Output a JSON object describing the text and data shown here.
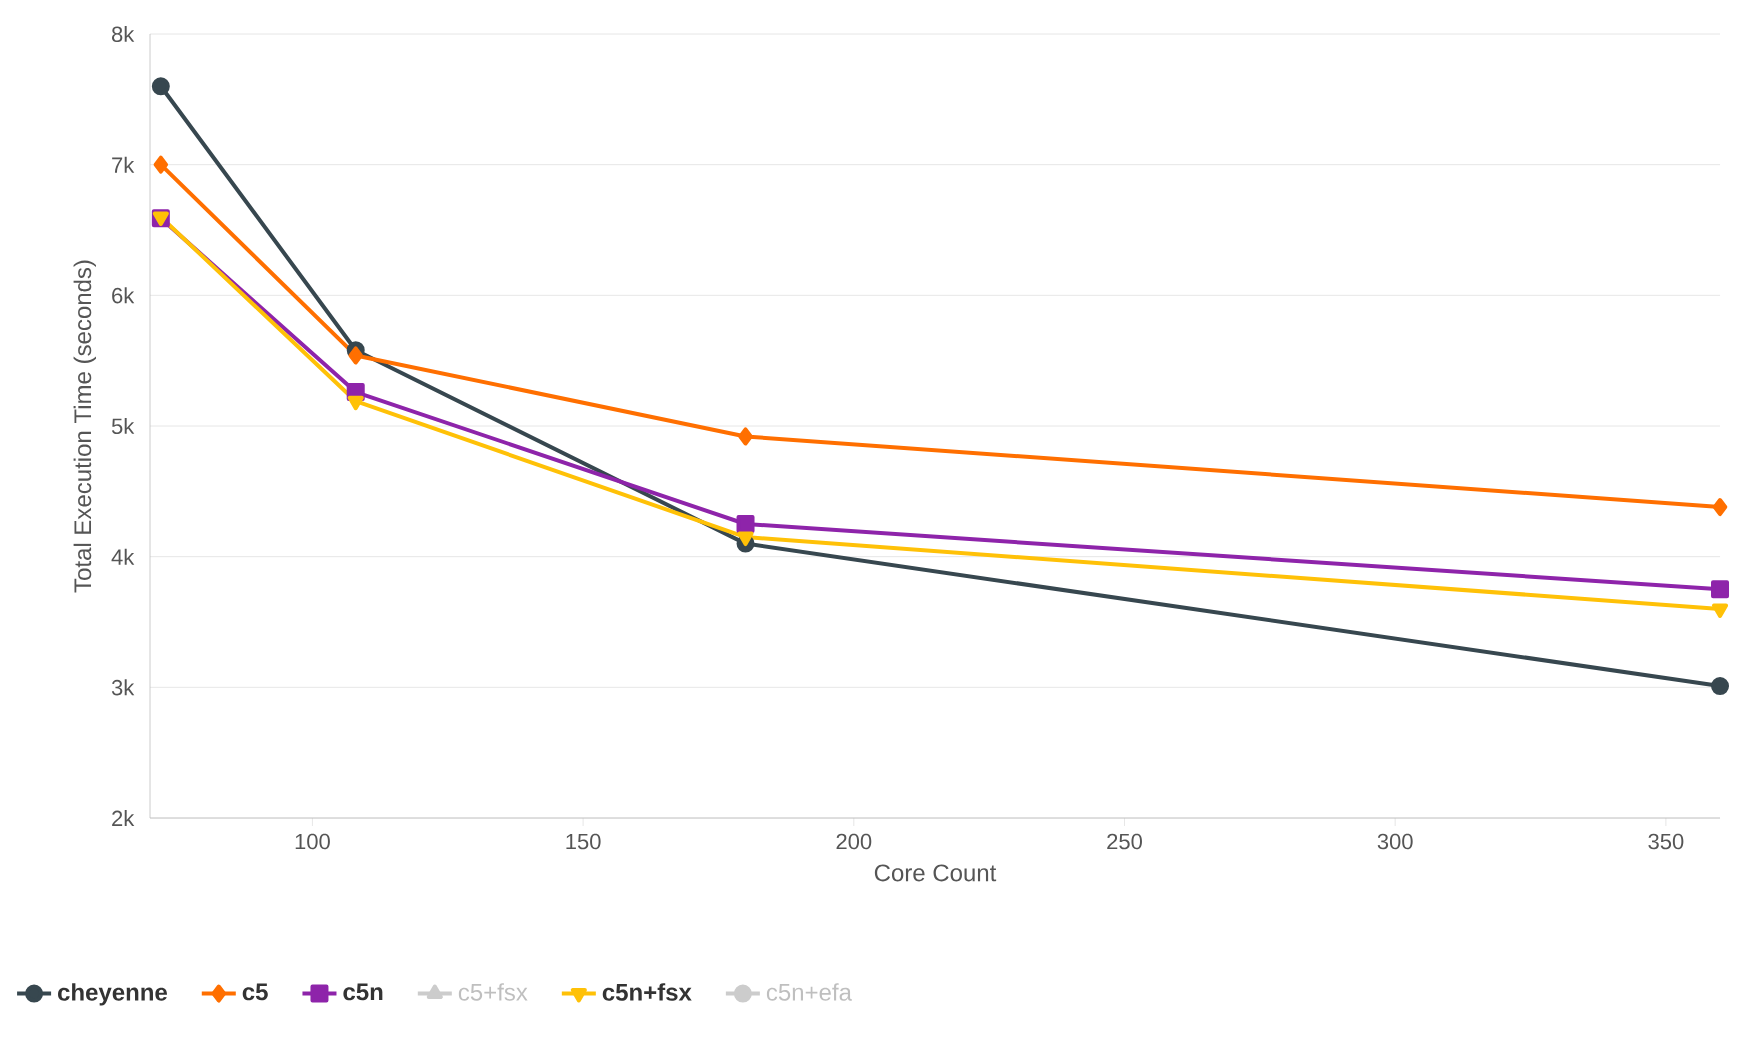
{
  "chart_data": {
    "type": "line",
    "xlabel": "Core Count",
    "ylabel": "Total Execution Time (seconds)",
    "x": [
      72,
      108,
      180,
      360
    ],
    "xlim": [
      70,
      360
    ],
    "xticks": [
      100,
      150,
      200,
      250,
      300,
      350
    ],
    "ylim": [
      2000,
      8000
    ],
    "yticks": [
      {
        "value": 2000,
        "label": "2k"
      },
      {
        "value": 3000,
        "label": "3k"
      },
      {
        "value": 4000,
        "label": "4k"
      },
      {
        "value": 5000,
        "label": "5k"
      },
      {
        "value": 6000,
        "label": "6k"
      },
      {
        "value": 7000,
        "label": "7k"
      },
      {
        "value": 8000,
        "label": "8k"
      }
    ],
    "grid": "y",
    "legend": "bottom",
    "series": [
      {
        "name": "cheyenne",
        "color": "#37474f",
        "marker": "circle",
        "values": [
          7600,
          5580,
          4100,
          3010
        ]
      },
      {
        "name": "c5",
        "color": "#ff6f00",
        "marker": "diamond",
        "values": [
          7000,
          5540,
          4920,
          4380
        ]
      },
      {
        "name": "c5n",
        "color": "#8e24aa",
        "marker": "square",
        "values": [
          6590,
          5260,
          4250,
          3750
        ]
      },
      {
        "name": "c5+fsx",
        "color": "#cccccc",
        "marker": "triangle",
        "values": [
          null,
          null,
          null,
          null
        ]
      },
      {
        "name": "c5n+fsx",
        "color": "#ffc107",
        "marker": "triangle down",
        "values": [
          6600,
          5190,
          4150,
          3600
        ]
      },
      {
        "name": "c5n+efa",
        "color": "#cccccc",
        "marker": "circle",
        "values": [
          null,
          null,
          null,
          null
        ]
      }
    ]
  }
}
